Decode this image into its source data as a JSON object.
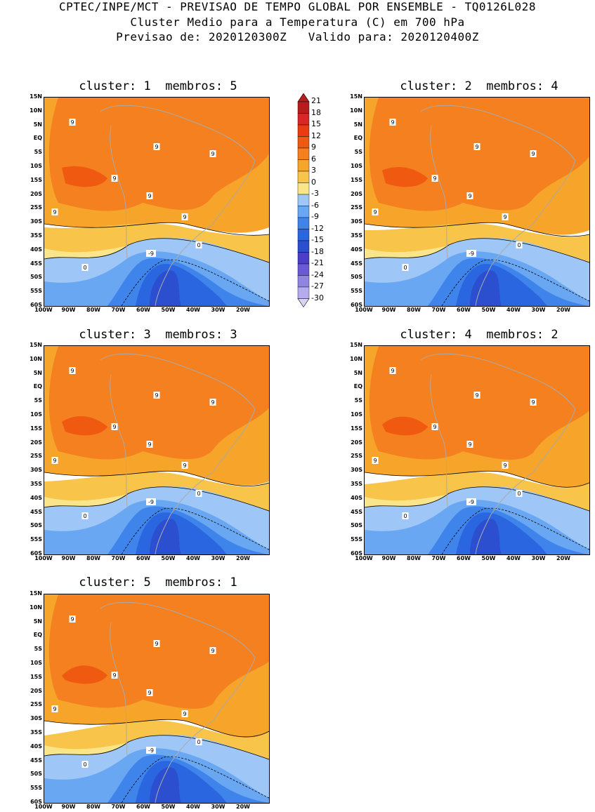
{
  "header": {
    "line1": "CPTEC/INPE/MCT - PREVISAO DE TEMPO GLOBAL POR ENSEMBLE - TQ0126L028",
    "line2": "Cluster Medio para a Temperatura (C) em 700 hPa",
    "line3": "Previsao de: 2020120300Z   Valido para: 2020120400Z"
  },
  "panels": [
    {
      "title": "cluster: 1  membros: 5"
    },
    {
      "title": "cluster: 2  membros: 4"
    },
    {
      "title": "cluster: 3  membros: 3"
    },
    {
      "title": "cluster: 4  membros: 2"
    },
    {
      "title": "cluster: 5  membros: 1"
    }
  ],
  "lat_labels": [
    "15N",
    "10N",
    "5N",
    "EQ",
    "5S",
    "10S",
    "15S",
    "20S",
    "25S",
    "30S",
    "35S",
    "40S",
    "45S",
    "50S",
    "55S",
    "60S"
  ],
  "lon_labels": [
    "100W",
    "90W",
    "80W",
    "70W",
    "60W",
    "50W",
    "40W",
    "30W",
    "20W"
  ],
  "colorbar": {
    "labels": [
      "21",
      "18",
      "15",
      "12",
      "9",
      "6",
      "3",
      "0",
      "-3",
      "-6",
      "-9",
      "-12",
      "-15",
      "-18",
      "-21",
      "-24",
      "-27",
      "-30"
    ],
    "colors": [
      "#b81d1d",
      "#d92626",
      "#ee3a10",
      "#f05a10",
      "#f4801f",
      "#f6a42a",
      "#f8c44a",
      "#fbe58a",
      "#9ec7f7",
      "#6aa7f2",
      "#3e84ea",
      "#2a66df",
      "#2b4fcf",
      "#4a3fc6",
      "#6a5ad6",
      "#8f85e3",
      "#b4acee",
      "#d9d4f7"
    ]
  },
  "contour_labels": {
    "warm": "9",
    "zero": "0",
    "cold": "-9"
  }
}
